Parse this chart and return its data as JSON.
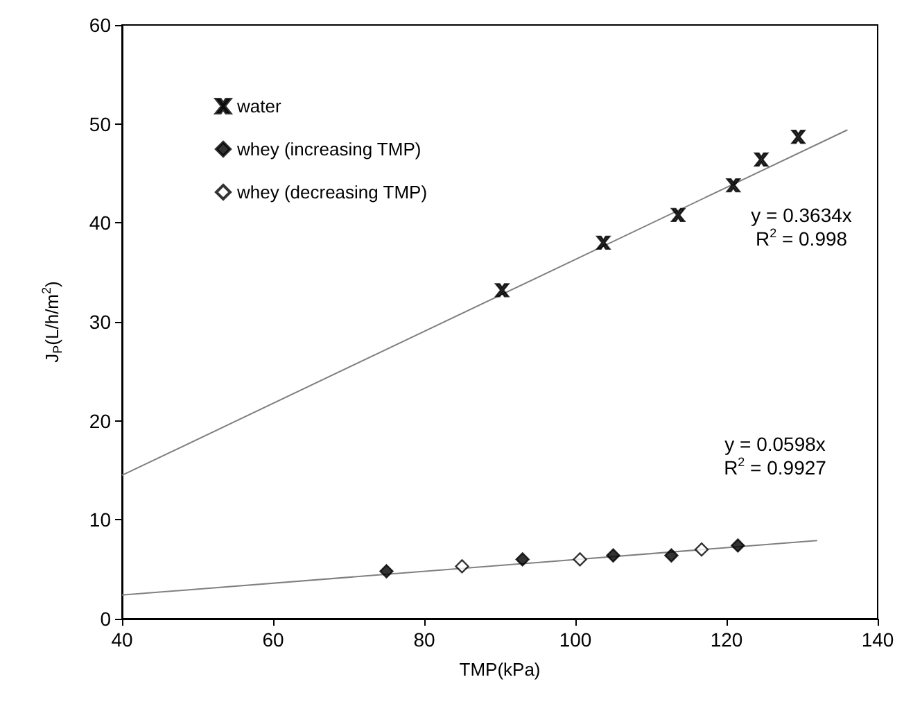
{
  "chart_data": {
    "type": "scatter",
    "xlabel": "TMP(kPa)",
    "ylabel": "J$_{P}$(L/h/m$^{2}$)",
    "xlim": [
      40,
      140
    ],
    "xticks": [
      40,
      60,
      80,
      100,
      120,
      140
    ],
    "ylim": [
      0,
      60
    ],
    "yticks": [
      0,
      10,
      20,
      30,
      40,
      50,
      60
    ],
    "grid": false,
    "legend": "top left",
    "series": [
      {
        "name": "water",
        "color": "#000000",
        "marker": "cross",
        "x": [
          90.3,
          103.7,
          113.6,
          120.9,
          124.6,
          129.5
        ],
        "values": [
          33.2,
          38.0,
          40.8,
          43.8,
          46.4,
          48.7
        ]
      },
      {
        "name": "whey (increasing TMP)",
        "color": "#000000",
        "marker": "diamond",
        "x": [
          75,
          93,
          105,
          112.7,
          121.5
        ],
        "values": [
          4.8,
          6.0,
          6.4,
          6.4,
          7.4
        ]
      },
      {
        "name": "whey (decreasing TMP)",
        "color": "#ffffff",
        "marker": "diamond",
        "x": [
          85,
          100.6,
          116.7
        ],
        "values": [
          5.3,
          6.0,
          7.0
        ]
      },
      {
        "type": "line",
        "color": "#808080",
        "marker": "none",
        "x": [
          40,
          136
        ],
        "values": [
          14.5,
          49.4
        ]
      },
      {
        "type": "line",
        "color": "#808080",
        "marker": "none",
        "x": [
          40,
          132
        ],
        "values": [
          2.4,
          7.9
        ]
      }
    ],
    "annotations": [
      "y = 0.3634x",
      "R$^{2}$ = 0.998",
      "y = 0.0598x",
      "R$^{2}$ = 0.9927"
    ]
  }
}
